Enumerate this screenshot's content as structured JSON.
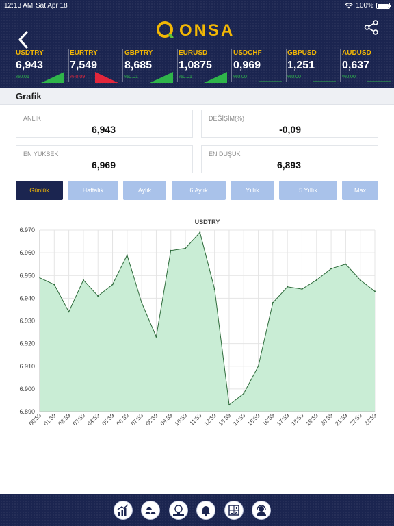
{
  "status_bar": {
    "time": "12:13 AM",
    "date": "Sat Apr 18",
    "battery": "100%"
  },
  "header": {
    "logo_text": "ONSA"
  },
  "tickers": [
    {
      "symbol": "USDTRY",
      "value": "6,943",
      "change": "%0.01",
      "direction": "up"
    },
    {
      "symbol": "EURTRY",
      "value": "7,549",
      "change": "%-0.09",
      "direction": "down"
    },
    {
      "symbol": "GBPTRY",
      "value": "8,685",
      "change": "%0.01",
      "direction": "up"
    },
    {
      "symbol": "EURUSD",
      "value": "1,0875",
      "change": "%0.01",
      "direction": "up"
    },
    {
      "symbol": "USDCHF",
      "value": "0,969",
      "change": "%0.00",
      "direction": "flat"
    },
    {
      "symbol": "GBPUSD",
      "value": "1,251",
      "change": "%0.00",
      "direction": "flat"
    },
    {
      "symbol": "AUDUSD",
      "value": "0,637",
      "change": "%0.00",
      "direction": "flat"
    }
  ],
  "section": {
    "title": "Grafik"
  },
  "stats": {
    "current": {
      "label": "ANLIK",
      "value": "6,943"
    },
    "change": {
      "label": "DEĞİŞİM(%)",
      "value": "-0,09"
    },
    "high": {
      "label": "EN YÜKSEK",
      "value": "6,969"
    },
    "low": {
      "label": "EN DÜŞÜK",
      "value": "6,893"
    }
  },
  "tabs": [
    {
      "label": "Günlük",
      "active": true
    },
    {
      "label": "Haftalık",
      "active": false
    },
    {
      "label": "Aylık",
      "active": false
    },
    {
      "label": "6 Aylık",
      "active": false
    },
    {
      "label": "Yıllık",
      "active": false
    },
    {
      "label": "5 Yıllık",
      "active": false
    },
    {
      "label": "Max",
      "active": false
    }
  ],
  "colors": {
    "navy": "#1b2550",
    "gold": "#f2b705",
    "tab": "#a9c2ea",
    "area_fill": "#c9edd5",
    "line": "#2d6a3a",
    "up": "#2fb54a",
    "down": "#e2263b"
  },
  "bottom_nav": [
    "chart-icon",
    "gold-bars-icon",
    "money-idea-icon",
    "bell-icon",
    "calculator-icon",
    "support-agent-icon"
  ],
  "chart_data": {
    "type": "area",
    "title": "USDTRY",
    "x": [
      "00:59",
      "01:59",
      "02:59",
      "03:59",
      "04:59",
      "05:59",
      "06:59",
      "07:59",
      "08:59",
      "09:59",
      "10:59",
      "11:59",
      "12:59",
      "13:59",
      "14:59",
      "15:59",
      "16:59",
      "17:59",
      "18:59",
      "19:59",
      "20:59",
      "21:59",
      "22:59",
      "23:59"
    ],
    "series": [
      {
        "values": [
          6.949,
          6.946,
          6.934,
          6.948,
          6.941,
          6.946,
          6.959,
          6.938,
          6.923,
          6.961,
          6.962,
          6.969,
          6.944,
          6.893,
          6.898,
          6.91,
          6.938,
          6.945,
          6.944,
          6.948,
          6.953,
          6.955,
          6.948,
          6.943
        ]
      }
    ],
    "ylim": [
      6.89,
      6.97
    ],
    "yticks": [
      "6.970",
      "6.960",
      "6.950",
      "6.940",
      "6.930",
      "6.920",
      "6.910",
      "6.900",
      "6.890"
    ],
    "grid": true
  }
}
